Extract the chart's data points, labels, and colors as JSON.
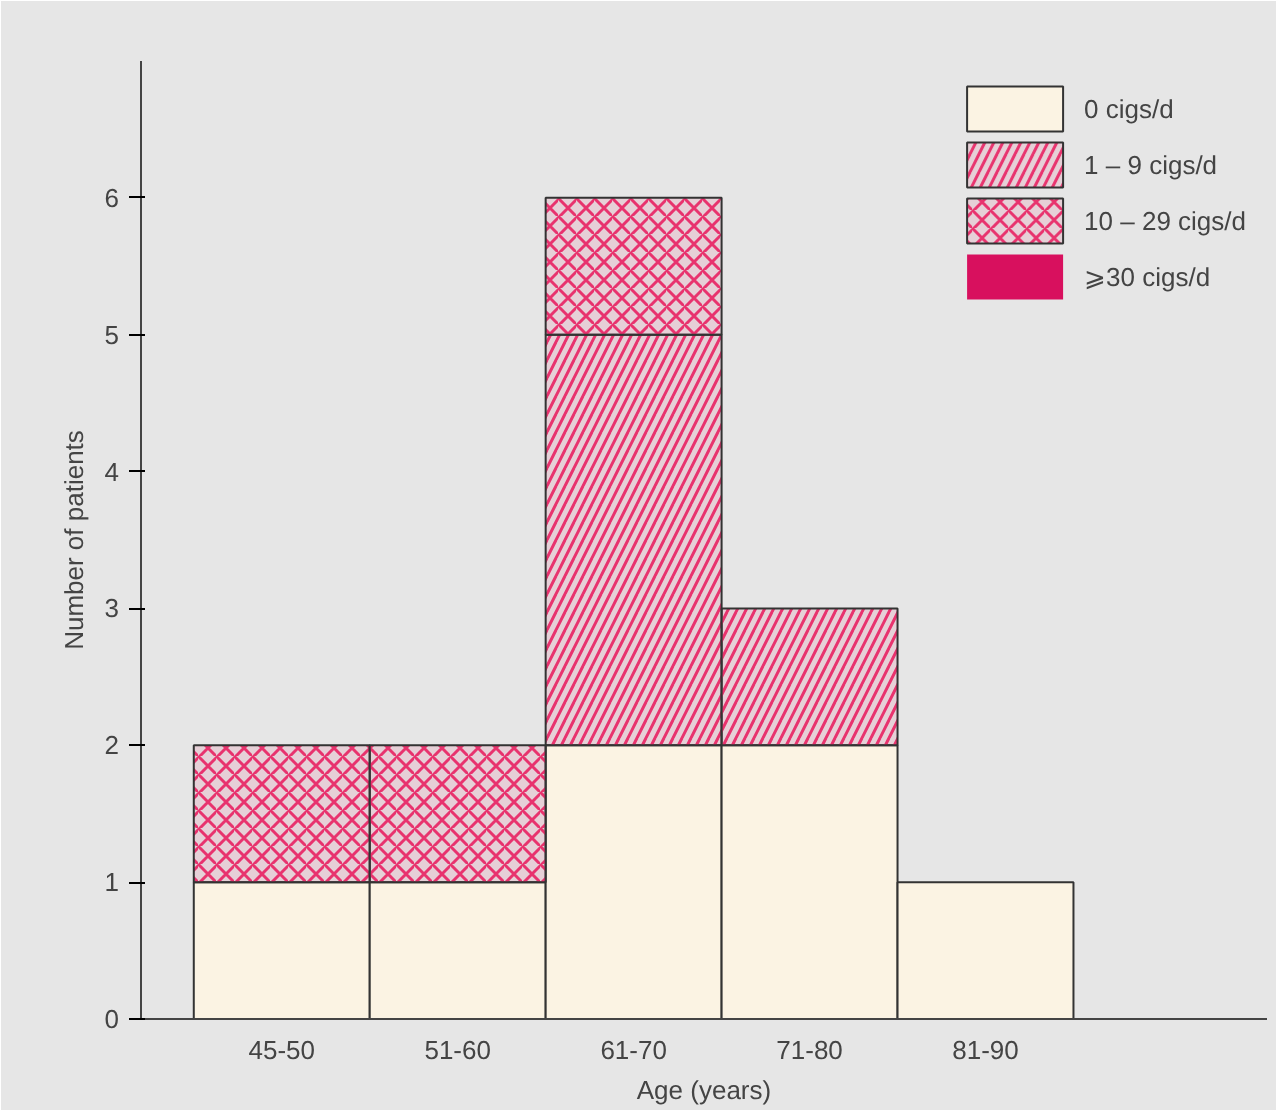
{
  "chart_data": {
    "type": "bar",
    "stacked": true,
    "xlabel": "Age (years)",
    "ylabel": "Number of patients",
    "categories": [
      "45-50",
      "51-60",
      "61-70",
      "71-80",
      "81-90"
    ],
    "series": [
      {
        "name": "0 cigs/d",
        "color": "#fbf3e3",
        "values": [
          1,
          1,
          2,
          2,
          1
        ]
      },
      {
        "name": "1 – 9 cigs/d",
        "color": "#e8336e",
        "values": [
          0,
          0,
          3,
          1,
          0
        ]
      },
      {
        "name": "10 – 29 cigs/d",
        "color": "#e8336e",
        "values": [
          1,
          1,
          1,
          0,
          0
        ]
      },
      {
        "name": "⩾30 cigs/d",
        "color": "#d8105e",
        "values": [
          0,
          0,
          0,
          0,
          0
        ]
      }
    ],
    "ylim": [
      0,
      7
    ],
    "yticks": [
      0,
      1,
      2,
      3,
      4,
      5,
      6
    ],
    "legend": "top right"
  }
}
